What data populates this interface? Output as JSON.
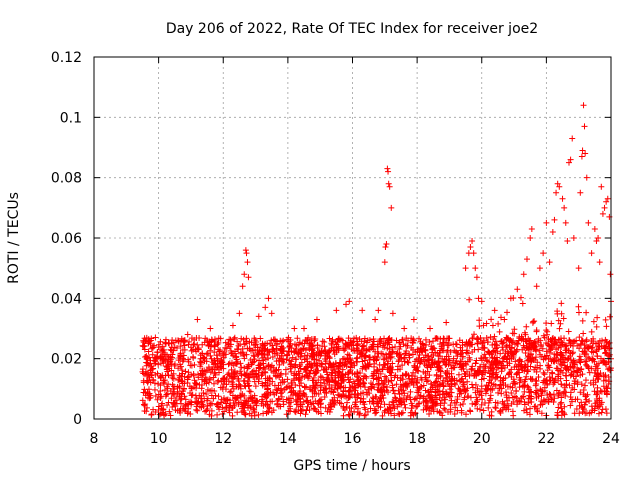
{
  "chart_data": {
    "type": "scatter",
    "title": "Day 206 of 2022, Rate Of TEC Index for receiver joe2",
    "xlabel": "GPS time / hours",
    "ylabel": "ROTI / TECUs",
    "xlim": [
      8,
      24
    ],
    "ylim": [
      0,
      0.12
    ],
    "x_ticks": [
      8,
      10,
      12,
      14,
      16,
      18,
      20,
      22,
      24
    ],
    "x_tick_labels": [
      "8",
      "10",
      "12",
      "14",
      "16",
      "18",
      "20",
      "22",
      "24"
    ],
    "y_ticks": [
      0,
      0.02,
      0.04,
      0.06,
      0.08,
      0.1,
      0.12
    ],
    "y_tick_labels": [
      "0",
      "0.02",
      "0.04",
      "0.06",
      "0.08",
      "0.1",
      "0.12"
    ],
    "grid": true,
    "marker": "+",
    "marker_color": "#ff0000",
    "series": [
      {
        "name": "ROTI",
        "baseline": {
          "x_range": [
            9.5,
            24
          ],
          "y_min": 0.001,
          "y_max": 0.027,
          "note": "dense band of points at roughly 0.002–0.027 TECU across the whole observation window"
        },
        "points": [
          [
            9.6,
            0.026
          ],
          [
            9.9,
            0.027
          ],
          [
            10.4,
            0.025
          ],
          [
            10.9,
            0.028
          ],
          [
            11.2,
            0.033
          ],
          [
            11.6,
            0.03
          ],
          [
            12.3,
            0.031
          ],
          [
            12.5,
            0.035
          ],
          [
            12.6,
            0.044
          ],
          [
            12.65,
            0.048
          ],
          [
            12.7,
            0.056
          ],
          [
            12.72,
            0.055
          ],
          [
            12.75,
            0.052
          ],
          [
            12.78,
            0.047
          ],
          [
            13.1,
            0.034
          ],
          [
            13.3,
            0.037
          ],
          [
            13.4,
            0.04
          ],
          [
            13.5,
            0.035
          ],
          [
            14.2,
            0.03
          ],
          [
            14.5,
            0.03
          ],
          [
            14.9,
            0.033
          ],
          [
            15.5,
            0.036
          ],
          [
            15.8,
            0.038
          ],
          [
            15.9,
            0.039
          ],
          [
            16.3,
            0.036
          ],
          [
            16.7,
            0.033
          ],
          [
            16.8,
            0.036
          ],
          [
            17.0,
            0.052
          ],
          [
            17.02,
            0.057
          ],
          [
            17.05,
            0.058
          ],
          [
            17.08,
            0.083
          ],
          [
            17.1,
            0.082
          ],
          [
            17.12,
            0.078
          ],
          [
            17.15,
            0.077
          ],
          [
            17.2,
            0.07
          ],
          [
            17.25,
            0.035
          ],
          [
            17.6,
            0.03
          ],
          [
            17.9,
            0.033
          ],
          [
            18.4,
            0.03
          ],
          [
            18.9,
            0.032
          ],
          [
            19.5,
            0.05
          ],
          [
            19.6,
            0.055
          ],
          [
            19.65,
            0.057
          ],
          [
            19.7,
            0.059
          ],
          [
            19.75,
            0.055
          ],
          [
            19.8,
            0.05
          ],
          [
            19.85,
            0.047
          ],
          [
            19.9,
            0.04
          ],
          [
            20.0,
            0.039
          ],
          [
            20.4,
            0.036
          ],
          [
            20.7,
            0.033
          ],
          [
            20.9,
            0.04
          ],
          [
            21.1,
            0.043
          ],
          [
            21.3,
            0.048
          ],
          [
            21.4,
            0.053
          ],
          [
            21.5,
            0.06
          ],
          [
            21.55,
            0.063
          ],
          [
            21.7,
            0.044
          ],
          [
            21.8,
            0.05
          ],
          [
            21.9,
            0.055
          ],
          [
            22.0,
            0.065
          ],
          [
            22.1,
            0.052
          ],
          [
            22.2,
            0.062
          ],
          [
            22.25,
            0.066
          ],
          [
            22.3,
            0.075
          ],
          [
            22.35,
            0.078
          ],
          [
            22.4,
            0.077
          ],
          [
            22.5,
            0.073
          ],
          [
            22.55,
            0.07
          ],
          [
            22.6,
            0.065
          ],
          [
            22.65,
            0.059
          ],
          [
            22.7,
            0.085
          ],
          [
            22.75,
            0.086
          ],
          [
            22.8,
            0.093
          ],
          [
            22.85,
            0.06
          ],
          [
            23.0,
            0.05
          ],
          [
            23.05,
            0.075
          ],
          [
            23.1,
            0.087
          ],
          [
            23.12,
            0.089
          ],
          [
            23.15,
            0.104
          ],
          [
            23.18,
            0.097
          ],
          [
            23.2,
            0.088
          ],
          [
            23.25,
            0.08
          ],
          [
            23.3,
            0.065
          ],
          [
            23.4,
            0.055
          ],
          [
            23.5,
            0.063
          ],
          [
            23.55,
            0.059
          ],
          [
            23.6,
            0.06
          ],
          [
            23.65,
            0.052
          ],
          [
            23.7,
            0.077
          ],
          [
            23.75,
            0.068
          ],
          [
            23.8,
            0.07
          ],
          [
            23.85,
            0.072
          ],
          [
            23.9,
            0.073
          ],
          [
            23.95,
            0.067
          ],
          [
            23.98,
            0.048
          ],
          [
            24.0,
            0.039
          ]
        ]
      }
    ]
  }
}
